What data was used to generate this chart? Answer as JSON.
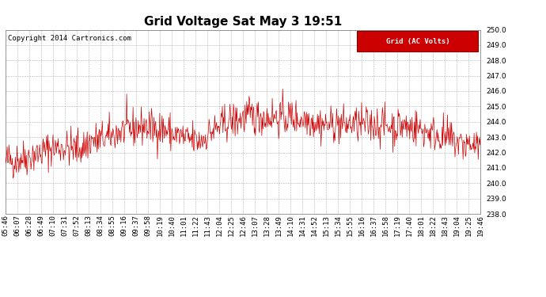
{
  "title": "Grid Voltage Sat May 3 19:51",
  "copyright": "Copyright 2014 Cartronics.com",
  "legend_label": "Grid (AC Volts)",
  "legend_bg": "#cc0000",
  "legend_text_color": "#ffffff",
  "line_color": "#cc0000",
  "background_color": "#ffffff",
  "plot_bg_color": "#ffffff",
  "grid_color": "#b0b0b0",
  "ylim": [
    238.0,
    250.0
  ],
  "yticks": [
    238.0,
    239.0,
    240.0,
    241.0,
    242.0,
    243.0,
    244.0,
    245.0,
    246.0,
    247.0,
    248.0,
    249.0,
    250.0
  ],
  "xtick_labels": [
    "05:46",
    "06:07",
    "06:28",
    "06:49",
    "07:10",
    "07:31",
    "07:52",
    "08:13",
    "08:34",
    "08:55",
    "09:16",
    "09:37",
    "09:58",
    "10:19",
    "10:40",
    "11:01",
    "11:22",
    "11:43",
    "12:04",
    "12:25",
    "12:46",
    "13:07",
    "13:28",
    "13:49",
    "14:10",
    "14:31",
    "14:52",
    "15:13",
    "15:34",
    "15:55",
    "16:16",
    "16:37",
    "16:58",
    "17:19",
    "17:40",
    "18:01",
    "18:22",
    "18:43",
    "19:04",
    "19:25",
    "19:46"
  ],
  "seed": 42,
  "n_points": 820,
  "title_fontsize": 11,
  "tick_fontsize": 6.5,
  "copyright_fontsize": 6.5
}
